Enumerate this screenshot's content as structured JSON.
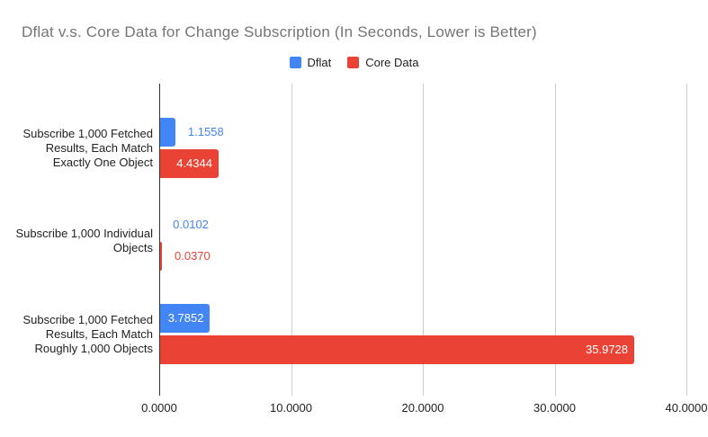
{
  "title": "Dflat v.s. Core Data for Change Subscription (In Seconds, Lower is Better)",
  "colors": {
    "dflat_blue": "#4285F4",
    "core_data_red": "#EA4335",
    "title_gray": "#757575",
    "gridline_gray": "#cccccc",
    "axis_line": "#333333",
    "label_dark": "#222222",
    "inside_value_label": "#ffffff"
  },
  "chart_data": {
    "type": "bar",
    "orientation": "horizontal",
    "title": "Dflat v.s. Core Data for Change Subscription (In Seconds, Lower is Better)",
    "unit": "seconds",
    "legend_position": "top-center",
    "grid": true,
    "categories": [
      "Subscribe 1,000 Fetched Results, Each Match Exactly One Object",
      "Subscribe 1,000 Individual Objects",
      "Subscribe 1,000 Fetched Results, Each Match Roughly 1,000 Objects"
    ],
    "category_lines": [
      [
        "Subscribe 1,000 Fetched",
        "Results, Each Match",
        "Exactly One Object"
      ],
      [
        "Subscribe 1,000 Individual",
        "Objects"
      ],
      [
        "Subscribe 1,000 Fetched",
        "Results, Each Match",
        "Roughly 1,000 Objects"
      ]
    ],
    "series": [
      {
        "name": "Dflat",
        "color": "#4285F4",
        "values": [
          1.1558,
          0.0102,
          3.7852
        ],
        "value_labels": [
          "1.1558",
          "0.0102",
          "3.7852"
        ]
      },
      {
        "name": "Core Data",
        "color": "#EA4335",
        "values": [
          4.4344,
          0.037,
          35.9728
        ],
        "value_labels": [
          "4.4344",
          "0.0370",
          "35.9728"
        ]
      }
    ],
    "x_axis": {
      "range": [
        0,
        40
      ],
      "ticks": [
        0,
        10,
        20,
        30,
        40
      ],
      "tick_labels": [
        "0.0000",
        "10.0000",
        "20.0000",
        "30.0000",
        "40.0000"
      ]
    }
  }
}
